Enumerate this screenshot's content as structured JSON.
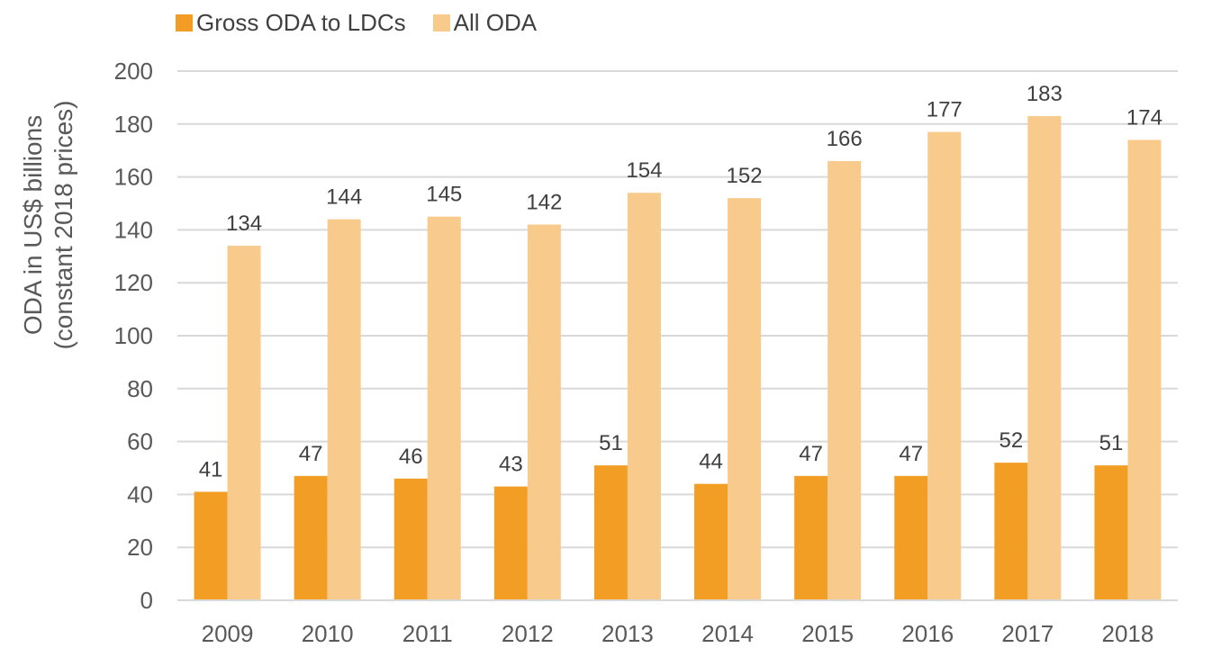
{
  "chart_data": {
    "type": "bar",
    "categories": [
      "2009",
      "2010",
      "2011",
      "2012",
      "2013",
      "2014",
      "2015",
      "2016",
      "2017",
      "2018"
    ],
    "series": [
      {
        "name": "Gross ODA to LDCs",
        "color": "#F29E25",
        "values": [
          41,
          47,
          46,
          43,
          51,
          44,
          47,
          47,
          52,
          51
        ]
      },
      {
        "name": "All ODA",
        "color": "#F8CA8C",
        "values": [
          134,
          144,
          145,
          142,
          154,
          152,
          166,
          177,
          183,
          174
        ]
      }
    ],
    "ylabel_line1": "ODA in US$ billions",
    "ylabel_line2": "(constant 2018 prices)",
    "ylim": [
      0,
      200
    ],
    "yticks": [
      0,
      20,
      40,
      60,
      80,
      100,
      120,
      140,
      160,
      180,
      200
    ],
    "grid": true,
    "legend_position": "top-left",
    "data_labels": true
  }
}
